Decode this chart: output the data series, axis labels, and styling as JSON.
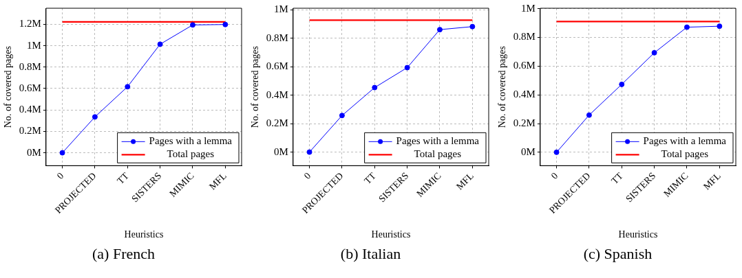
{
  "chart_data": [
    {
      "type": "line",
      "xlabel": "Heuristics",
      "ylabel": "No. of covered pages",
      "annotations": [
        "(a) French"
      ],
      "categories": [
        "0",
        "PROJECTED",
        "TT",
        "SISTERS",
        "MIMIC",
        "MFL"
      ],
      "series": [
        {
          "name": "Pages with a lemma",
          "color": "#0000ff",
          "values": [
            0,
            0.335,
            0.617,
            1.014,
            1.194,
            1.198
          ],
          "marker": "circle"
        },
        {
          "name": "Total pages",
          "color": "#ff0000",
          "values": [
            1.223,
            1.223,
            1.223,
            1.223,
            1.223,
            1.223
          ],
          "marker": "none"
        }
      ],
      "ylim": [
        -0.12,
        1.35
      ],
      "yticks": [
        {
          "value": 0,
          "label": "0M"
        },
        {
          "value": 0.2,
          "label": "0.2M"
        },
        {
          "value": 0.4,
          "label": "0.4M"
        },
        {
          "value": 0.6,
          "label": "0.6M"
        },
        {
          "value": 0.8,
          "label": "0.8M"
        },
        {
          "value": 1,
          "label": "1M"
        },
        {
          "value": 1.2,
          "label": "1.2M"
        }
      ],
      "grid": true,
      "legend": "bottom right"
    },
    {
      "type": "line",
      "xlabel": "Heuristics",
      "ylabel": "No. of covered pages",
      "annotations": [
        "(b) Italian"
      ],
      "categories": [
        "0",
        "PROJECTED",
        "TT",
        "SISTERS",
        "MIMIC",
        "MFL"
      ],
      "series": [
        {
          "name": "Pages with a lemma",
          "color": "#0000ff",
          "values": [
            0,
            0.257,
            0.453,
            0.593,
            0.86,
            0.881
          ],
          "marker": "circle"
        },
        {
          "name": "Total pages",
          "color": "#ff0000",
          "values": [
            0.926,
            0.926,
            0.926,
            0.926,
            0.926,
            0.926
          ],
          "marker": "none"
        }
      ],
      "ylim": [
        -0.095,
        1.01
      ],
      "yticks": [
        {
          "value": 0,
          "label": "0M"
        },
        {
          "value": 0.2,
          "label": "0.2M"
        },
        {
          "value": 0.4,
          "label": "0.4M"
        },
        {
          "value": 0.6,
          "label": "0.6M"
        },
        {
          "value": 0.8,
          "label": "0.8M"
        },
        {
          "value": 1,
          "label": "1M"
        }
      ],
      "grid": true,
      "legend": "bottom right"
    },
    {
      "type": "line",
      "xlabel": "Heuristics",
      "ylabel": "No. of covered pages",
      "annotations": [
        "(c) Spanish"
      ],
      "categories": [
        "0",
        "PROJECTED",
        "TT",
        "SISTERS",
        "MIMIC",
        "MFL"
      ],
      "series": [
        {
          "name": "Pages with a lemma",
          "color": "#0000ff",
          "values": [
            0,
            0.259,
            0.473,
            0.693,
            0.871,
            0.878
          ],
          "marker": "circle"
        },
        {
          "name": "Total pages",
          "color": "#ff0000",
          "values": [
            0.91,
            0.91,
            0.91,
            0.91,
            0.91,
            0.91
          ],
          "marker": "none"
        }
      ],
      "ylim": [
        -0.093,
        1.003
      ],
      "yticks": [
        {
          "value": 0,
          "label": "0M"
        },
        {
          "value": 0.2,
          "label": "0.2M"
        },
        {
          "value": 0.4,
          "label": "0.4M"
        },
        {
          "value": 0.6,
          "label": "0.6M"
        },
        {
          "value": 0.8,
          "label": "0.8M"
        },
        {
          "value": 1,
          "label": "1M"
        }
      ],
      "grid": true,
      "legend": "bottom right"
    }
  ]
}
